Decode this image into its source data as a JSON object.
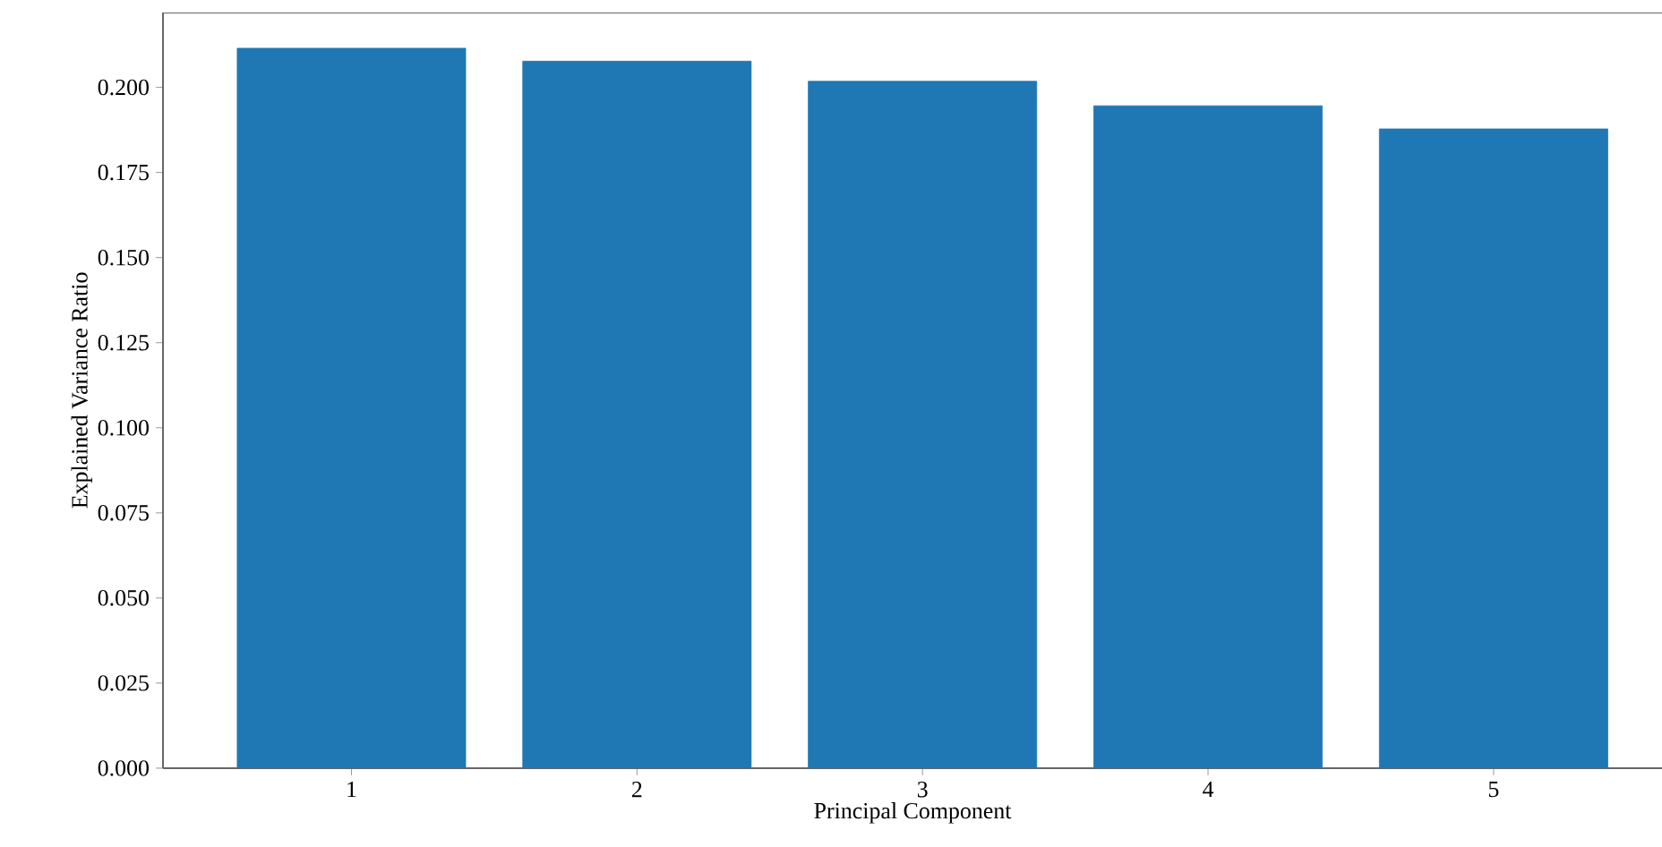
{
  "chart_data": {
    "type": "bar",
    "xlabel": "Principal Component",
    "ylabel": "Explained Variance Ratio",
    "categories": [
      "1",
      "2",
      "3",
      "4",
      "5"
    ],
    "values": [
      0.2115,
      0.2077,
      0.2018,
      0.1946,
      0.1878
    ],
    "color": "#1f77b4",
    "ylim": [
      0,
      0.222
    ],
    "yticks": [
      {
        "value": 0,
        "label": "0.000"
      },
      0.025,
      {
        "value": 0.05,
        "label": "0.050"
      },
      {
        "value": 0.075,
        "label": "0.075"
      },
      {
        "value": 0.1,
        "label": "0.100"
      },
      0.125,
      {
        "value": 0.15,
        "label": "0.150"
      },
      0.175,
      {
        "value": 0.2,
        "label": "0.200"
      }
    ],
    "grid": false
  }
}
